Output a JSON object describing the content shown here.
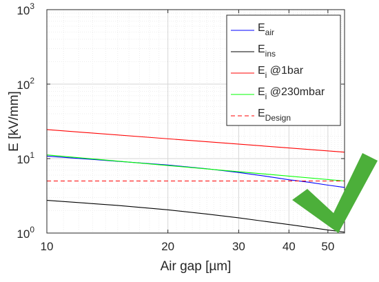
{
  "chart_data": {
    "type": "line",
    "xlabel": "Air gap [µm]",
    "ylabel": "E [kV/mm]",
    "xscale": "log",
    "yscale": "log",
    "xlim": [
      10,
      55
    ],
    "ylim": [
      1,
      1000
    ],
    "grid": true,
    "x_ticks": [
      {
        "value": 10,
        "label": "10"
      },
      {
        "value": 20,
        "label": "20"
      },
      {
        "value": 30,
        "label": "30"
      },
      {
        "value": 40,
        "label": "40"
      },
      {
        "value": 50,
        "label": "50"
      }
    ],
    "y_ticks": [
      {
        "value": 1,
        "base": "10",
        "exp": "0"
      },
      {
        "value": 10,
        "base": "10",
        "exp": "1"
      },
      {
        "value": 100,
        "base": "10",
        "exp": "2"
      },
      {
        "value": 1000,
        "base": "10",
        "exp": "3"
      }
    ],
    "legend_position": "top-right",
    "series": [
      {
        "name": "E_air",
        "legend_main": "E",
        "legend_sub": "air",
        "legend_suffix": "",
        "color": "#0000ff",
        "dash": "solid",
        "x": [
          10,
          15,
          20,
          25,
          30,
          35,
          40,
          45,
          50,
          55
        ],
        "y": [
          10.8,
          9.2,
          8.2,
          7.3,
          6.5,
          5.8,
          5.2,
          4.8,
          4.4,
          4.1
        ]
      },
      {
        "name": "E_ins",
        "legend_main": "E",
        "legend_sub": "ins",
        "legend_suffix": "",
        "color": "#000000",
        "dash": "solid",
        "x": [
          10,
          15,
          20,
          25,
          30,
          35,
          40,
          45,
          50,
          55
        ],
        "y": [
          2.75,
          2.35,
          2.05,
          1.8,
          1.6,
          1.43,
          1.3,
          1.19,
          1.1,
          1.03
        ]
      },
      {
        "name": "E_i @1bar",
        "legend_main": "E",
        "legend_sub": "i",
        "legend_suffix": " @1bar",
        "color": "#ff0000",
        "dash": "solid",
        "x": [
          10,
          55
        ],
        "y": [
          24.5,
          12.2
        ]
      },
      {
        "name": "E_i @230mbar",
        "legend_main": "E",
        "legend_sub": "i",
        "legend_suffix": " @230mbar",
        "color": "#00ff00",
        "dash": "solid",
        "x": [
          10,
          55
        ],
        "y": [
          11.2,
          5.0
        ]
      },
      {
        "name": "E_Design",
        "legend_main": "E",
        "legend_sub": "Design",
        "legend_suffix": "",
        "color": "#ff0000",
        "dash": "dashed",
        "x": [
          10,
          55
        ],
        "y": [
          5.0,
          5.0
        ]
      }
    ]
  },
  "overlay": {
    "checkmark_color": "#4caf3a",
    "checkmark_icon": "checkmark"
  }
}
